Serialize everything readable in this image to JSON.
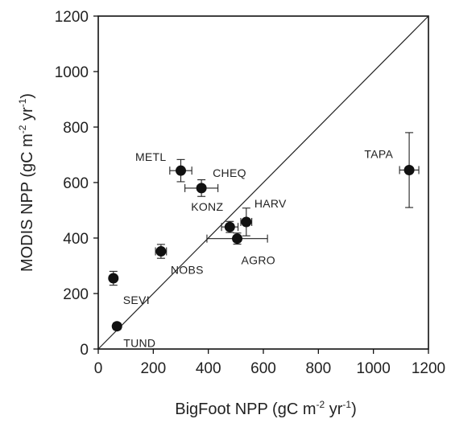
{
  "chart_data": {
    "type": "scatter",
    "xlabel": "BigFoot NPP (gC m",
    "xlabel_sup1": "-2",
    "xlabel_mid": " yr",
    "xlabel_sup2": "-1",
    "xlabel_end": ")",
    "ylabel": "MODIS NPP (gC m",
    "ylabel_sup1": "-2",
    "ylabel_mid": " yr",
    "ylabel_sup2": "-1",
    "ylabel_end": ")",
    "xlim": [
      0,
      1200
    ],
    "ylim": [
      0,
      1200
    ],
    "xticks": [
      "0",
      "200",
      "400",
      "600",
      "800",
      "1000",
      "1200"
    ],
    "yticks": [
      "0",
      "200",
      "400",
      "600",
      "800",
      "1000",
      "1200"
    ],
    "reference_line": "1:1",
    "grid": false,
    "points": [
      {
        "label": "METL",
        "x": 300,
        "y": 643,
        "x_err": 40,
        "y_err": 40
      },
      {
        "label": "CHEQ",
        "x": 375,
        "y": 580,
        "x_err": 60,
        "y_err": 30
      },
      {
        "label": "KONZ",
        "x": 478,
        "y": 440,
        "x_err": 30,
        "y_err": 20
      },
      {
        "label": "HARV",
        "x": 538,
        "y": 458,
        "x_err": 20,
        "y_err": 50
      },
      {
        "label": "AGRO",
        "x": 505,
        "y": 398,
        "x_err": 110,
        "y_err": 20
      },
      {
        "label": "TAPA",
        "x": 1130,
        "y": 645,
        "x_err": 35,
        "y_err": 135
      },
      {
        "label": "NOBS",
        "x": 228,
        "y": 352,
        "x_err": 20,
        "y_err": 25
      },
      {
        "label": "SEVI",
        "x": 55,
        "y": 255,
        "x_err": 8,
        "y_err": 25
      },
      {
        "label": "TUND",
        "x": 68,
        "y": 82,
        "x_err": 8,
        "y_err": 12
      }
    ]
  }
}
